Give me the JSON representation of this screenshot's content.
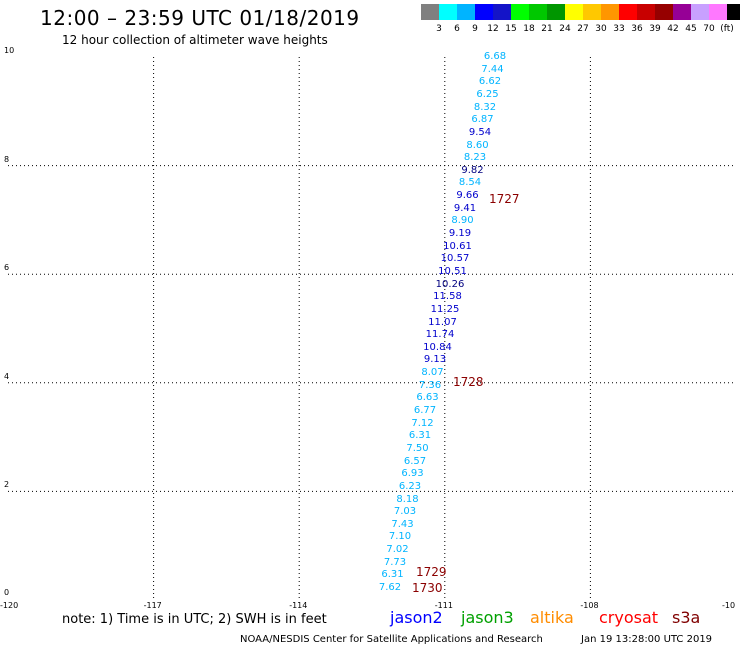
{
  "header": {
    "title": "12:00 – 23:59 UTC 01/18/2019",
    "subtitle": "12 hour collection of altimeter wave heights"
  },
  "color_scale": {
    "swatches": [
      "#808080",
      "#00ffff",
      "#00b4ff",
      "#0000ff",
      "#1414c8",
      "#00ff00",
      "#00c800",
      "#009600",
      "#ffff00",
      "#ffc800",
      "#ff9600",
      "#ff0000",
      "#c80000",
      "#960000",
      "#960096",
      "#c8a0ff",
      "#ff78ff",
      "#000000"
    ],
    "labels": [
      "3",
      "6",
      "9",
      "12",
      "15",
      "18",
      "21",
      "24",
      "27",
      "30",
      "33",
      "36",
      "39",
      "42",
      "45",
      "70",
      "(ft)"
    ]
  },
  "axes": {
    "x_ticks": [
      "-120",
      "-117",
      "-114",
      "-111",
      "-108",
      "-10"
    ],
    "y_ticks": [
      "0",
      "2",
      "4",
      "6",
      "8",
      "10"
    ]
  },
  "observations": [
    {
      "text": "6.68",
      "color": "#00b4ff"
    },
    {
      "text": "7.44",
      "color": "#00b4ff"
    },
    {
      "text": "6.62",
      "color": "#00b4ff"
    },
    {
      "text": "6.25",
      "color": "#00b4ff"
    },
    {
      "text": "8.32",
      "color": "#00b4ff"
    },
    {
      "text": "6.87",
      "color": "#00b4ff"
    },
    {
      "text": "9.54",
      "color": "#0000cc"
    },
    {
      "text": "8.60",
      "color": "#00b4ff"
    },
    {
      "text": "8.23",
      "color": "#00b4ff"
    },
    {
      "text": "9.82",
      "color": "#000080"
    },
    {
      "text": "8.54",
      "color": "#00b4ff"
    },
    {
      "text": "9.66",
      "color": "#0000cc"
    },
    {
      "text": "9.41",
      "color": "#0000cc"
    },
    {
      "text": "8.90",
      "color": "#00b4ff"
    },
    {
      "text": "9.19",
      "color": "#0000cc"
    },
    {
      "text": "10.61",
      "color": "#0000cc"
    },
    {
      "text": "10.57",
      "color": "#0000cc"
    },
    {
      "text": "10.51",
      "color": "#0000cc"
    },
    {
      "text": "10.26",
      "color": "#000080"
    },
    {
      "text": "11.58",
      "color": "#0000cc"
    },
    {
      "text": "11.25",
      "color": "#0000cc"
    },
    {
      "text": "11.07",
      "color": "#0000cc"
    },
    {
      "text": "11.74",
      "color": "#0000cc"
    },
    {
      "text": "10.84",
      "color": "#0000cc"
    },
    {
      "text": "9.13",
      "color": "#0000cc"
    },
    {
      "text": "8.07",
      "color": "#00b4ff"
    },
    {
      "text": "7.36",
      "color": "#00b4ff"
    },
    {
      "text": "6.63",
      "color": "#00b4ff"
    },
    {
      "text": "6.77",
      "color": "#00b4ff"
    },
    {
      "text": "7.12",
      "color": "#00b4ff"
    },
    {
      "text": "6.31",
      "color": "#00b4ff"
    },
    {
      "text": "7.50",
      "color": "#00b4ff"
    },
    {
      "text": "6.57",
      "color": "#00b4ff"
    },
    {
      "text": "6.93",
      "color": "#00b4ff"
    },
    {
      "text": "6.23",
      "color": "#00b4ff"
    },
    {
      "text": "8.18",
      "color": "#00b4ff"
    },
    {
      "text": "7.03",
      "color": "#00b4ff"
    },
    {
      "text": "7.43",
      "color": "#00b4ff"
    },
    {
      "text": "7.10",
      "color": "#00b4ff"
    },
    {
      "text": "7.02",
      "color": "#00b4ff"
    },
    {
      "text": "7.73",
      "color": "#00b4ff"
    },
    {
      "text": "6.31",
      "color": "#00b4ff"
    },
    {
      "text": "7.62",
      "color": "#00b4ff"
    }
  ],
  "pass_times": [
    "1727",
    "1728",
    "1729",
    "1730"
  ],
  "footer": {
    "note": "note:  1) Time is in UTC;  2) SWH is in feet",
    "satellites": [
      {
        "name": "jason2",
        "color": "#0000ff"
      },
      {
        "name": "jason3",
        "color": "#00a000"
      },
      {
        "name": "altika",
        "color": "#ff8c00"
      },
      {
        "name": "cryosat",
        "color": "#ff0000"
      },
      {
        "name": "s3a",
        "color": "#800000"
      }
    ],
    "credit": "NOAA/NESDIS Center for Satellite Applications and Research",
    "timestamp": "Jan 19 13:28:00 UTC 2019"
  }
}
